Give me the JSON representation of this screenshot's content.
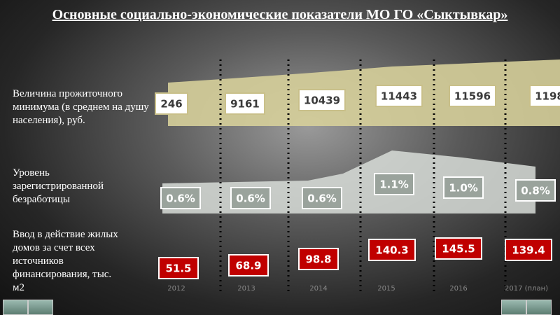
{
  "title": "Основные социально-экономические показатели МО ГО «Сыктывкар»",
  "rows": [
    {
      "label": "Величина прожиточного минимума (в среднем на душу населения), руб.",
      "values": [
        "246",
        "9161",
        "10439",
        "11443",
        "11596",
        "1198"
      ]
    },
    {
      "label": "Уровень зарегистрированной безработицы",
      "values": [
        "0.6%",
        "0.6%",
        "0.6%",
        "1.1%",
        "1.0%",
        "0.8%"
      ]
    },
    {
      "label": "Ввод в действие жилых домов за счет всех источников финансирования, тыс. м2",
      "values": [
        "51.5",
        "68.9",
        "98.8",
        "140.3",
        "145.5",
        "139.4"
      ]
    }
  ],
  "years": [
    "2012",
    "2013",
    "2014",
    "2015",
    "2016",
    "2017 (план)"
  ]
}
